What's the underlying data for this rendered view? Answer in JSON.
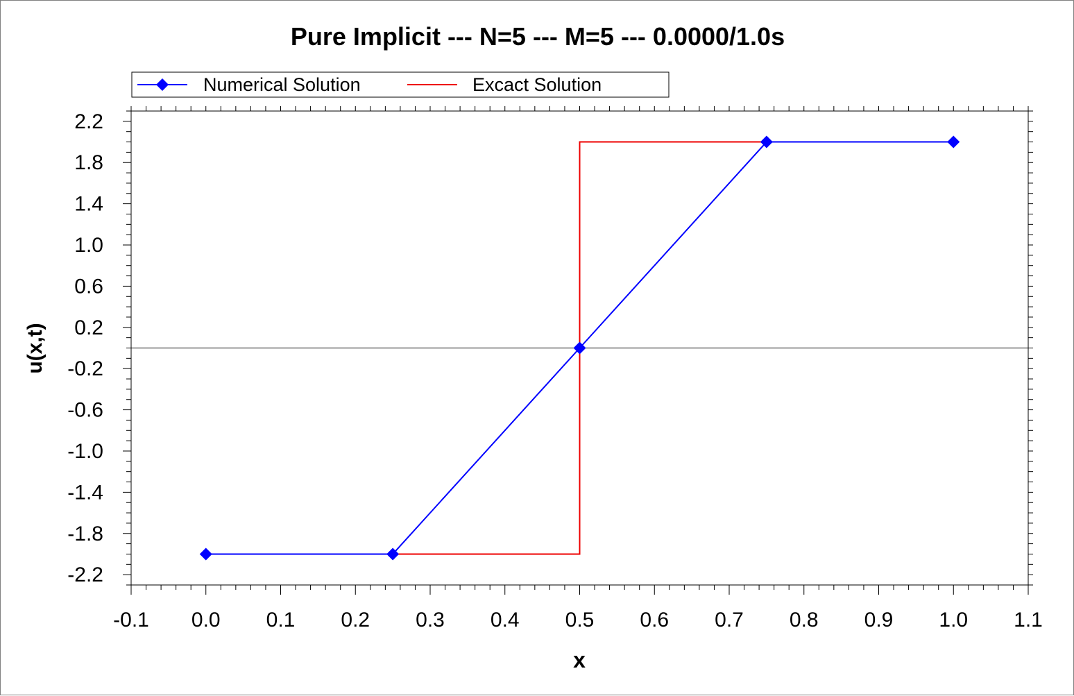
{
  "chart_data": {
    "type": "line",
    "title": "Pure Implicit --- N=5 --- M=5 --- 0.0000/1.0s",
    "xlabel": "x",
    "ylabel": "u(x,t)",
    "xlim": [
      -0.1,
      1.1
    ],
    "ylim": [
      -2.3,
      2.3
    ],
    "x_ticks": [
      -0.1,
      0.0,
      0.1,
      0.2,
      0.3,
      0.4,
      0.5,
      0.6,
      0.7,
      0.8,
      0.9,
      1.0,
      1.1
    ],
    "x_tick_labels": [
      "-0.1",
      "0.0",
      "0.1",
      "0.2",
      "0.3",
      "0.4",
      "0.5",
      "0.6",
      "0.7",
      "0.8",
      "0.9",
      "1.0",
      "1.1"
    ],
    "y_ticks": [
      2.2,
      1.8,
      1.4,
      1.0,
      0.6,
      0.2,
      -0.2,
      -0.6,
      -1.0,
      -1.4,
      -1.8,
      -2.2
    ],
    "y_tick_labels": [
      "2.2",
      "1.8",
      "1.4",
      "1.0",
      "0.6",
      "0.2",
      "-0.2",
      "-0.6",
      "-1.0",
      "-1.4",
      "-1.8",
      "-2.2"
    ],
    "grid": false,
    "zero_line": true,
    "legend_position": "top",
    "series": [
      {
        "name": "Numerical Solution",
        "color": "#0000ff",
        "marker": "diamond",
        "x": [
          0.0,
          0.25,
          0.5,
          0.75,
          1.0
        ],
        "y": [
          -2.0,
          -2.0,
          0.0,
          2.0,
          2.0
        ]
      },
      {
        "name": "Excact Solution",
        "color": "#ee0000",
        "marker": "none",
        "x": [
          0.25,
          0.5,
          0.5,
          0.75
        ],
        "y": [
          -2.0,
          -2.0,
          2.0,
          2.0
        ]
      }
    ]
  }
}
